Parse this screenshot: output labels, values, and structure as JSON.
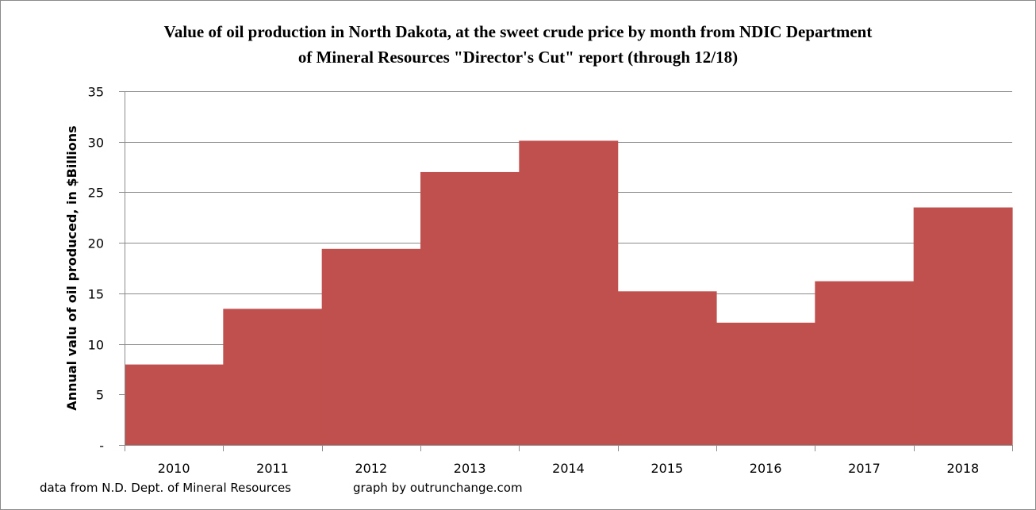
{
  "chart_data": {
    "type": "bar",
    "title_line1": "Value of oil production in North Dakota, at the sweet crude price by month from NDIC Department",
    "title_line2": "of Mineral Resources \"Director's Cut\" report  (through 12/18)",
    "xlabel": "",
    "ylabel": "Annual valu of oil produced, in $Billions",
    "categories": [
      "2010",
      "2011",
      "2012",
      "2013",
      "2014",
      "2015",
      "2016",
      "2017",
      "2018"
    ],
    "values": [
      7.96,
      13.47,
      19.4,
      27.0,
      30.1,
      15.2,
      12.1,
      16.2,
      23.5
    ],
    "ylim": [
      0,
      35
    ],
    "yticks": [
      0,
      5,
      10,
      15,
      20,
      25,
      30,
      35
    ],
    "ytick_labels": [
      "-",
      "5",
      "10",
      "15",
      "20",
      "25",
      "30",
      "35"
    ],
    "grid": true,
    "bar_color": "#c0504d",
    "gridline_color": "#8c8c8c",
    "legend": "none"
  },
  "footer": {
    "source": "data from N.D. Dept. of Mineral Resources",
    "credit": "graph by outrunchange.com"
  }
}
